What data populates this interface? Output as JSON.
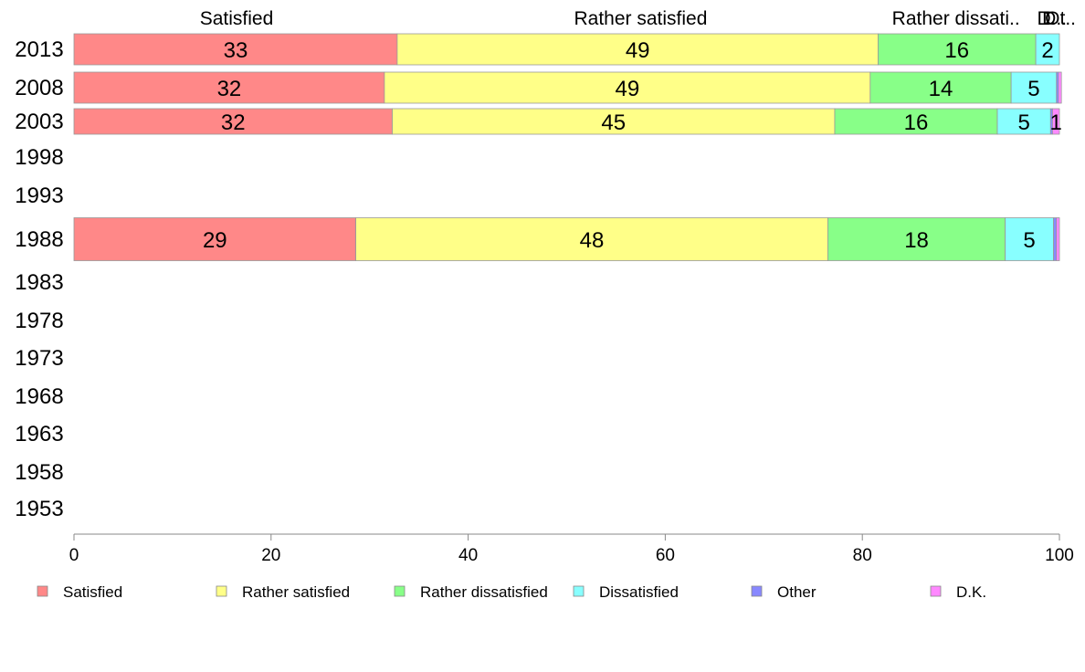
{
  "chart_data": {
    "type": "bar",
    "orientation": "horizontal",
    "stacked": true,
    "title": "",
    "xlabel": "",
    "ylabel": "",
    "xlim": [
      0,
      100
    ],
    "x_ticks": [
      "0",
      "20",
      "40",
      "60",
      "80",
      "100"
    ],
    "categories": [
      "2013",
      "2008",
      "2003",
      "1998",
      "1993",
      "1988",
      "1983",
      "1978",
      "1973",
      "1968",
      "1963",
      "1958",
      "1953"
    ],
    "top_labels": [
      {
        "text": "Satisfied",
        "center": 16.5
      },
      {
        "text": "Rather satisfied",
        "center": 57.5
      },
      {
        "text": "Rather dissati..",
        "center": 89.5
      },
      {
        "text": "D.",
        "center": 98.7
      },
      {
        "text": "D..",
        "center": 99.5
      },
      {
        "text": "Ot..",
        "center": 100.1
      }
    ],
    "series": [
      {
        "name": "Satisfied",
        "color": "#ff8888",
        "values": [
          32.8,
          31.5,
          32.3,
          null,
          null,
          28.6,
          null,
          null,
          null,
          null,
          null,
          null,
          null
        ],
        "labels": [
          "33",
          "32",
          "32",
          "",
          "",
          "29",
          "",
          "",
          "",
          "",
          "",
          "",
          ""
        ]
      },
      {
        "name": "Rather satisfied",
        "color": "#ffff88",
        "values": [
          48.8,
          49.3,
          44.9,
          null,
          null,
          47.9,
          null,
          null,
          null,
          null,
          null,
          null,
          null
        ],
        "labels": [
          "49",
          "49",
          "45",
          "",
          "",
          "48",
          "",
          "",
          "",
          "",
          "",
          "",
          ""
        ]
      },
      {
        "name": "Rather dissatisfied",
        "color": "#88ff88",
        "values": [
          16.0,
          14.3,
          16.5,
          null,
          null,
          18.0,
          null,
          null,
          null,
          null,
          null,
          null,
          null
        ],
        "labels": [
          "16",
          "14",
          "16",
          "",
          "",
          "18",
          "",
          "",
          "",
          "",
          "",
          "",
          ""
        ]
      },
      {
        "name": "Dissatisfied",
        "color": "#88ffff",
        "values": [
          2.4,
          4.6,
          5.4,
          null,
          null,
          4.9,
          null,
          null,
          null,
          null,
          null,
          null,
          null
        ],
        "labels": [
          "2",
          "5",
          "5",
          "",
          "",
          "5",
          "",
          "",
          "",
          "",
          "",
          "",
          ""
        ]
      },
      {
        "name": "Other",
        "color": "#8888ff",
        "values": [
          0,
          0.2,
          0.2,
          null,
          null,
          0.3,
          null,
          null,
          null,
          null,
          null,
          null,
          null
        ],
        "labels": [
          "",
          "",
          "",
          "",
          "",
          "",
          "",
          "",
          "",
          "",
          "",
          "",
          ""
        ]
      },
      {
        "name": "D.K.",
        "color": "#ff88ff",
        "values": [
          0,
          0.3,
          0.7,
          null,
          null,
          0.3,
          null,
          null,
          null,
          null,
          null,
          null,
          null
        ],
        "labels": [
          "",
          "",
          "1",
          "",
          "",
          "",
          "",
          "",
          "",
          "",
          "",
          "",
          ""
        ]
      }
    ],
    "legend": {
      "placement": "bottom"
    },
    "grid": false
  }
}
